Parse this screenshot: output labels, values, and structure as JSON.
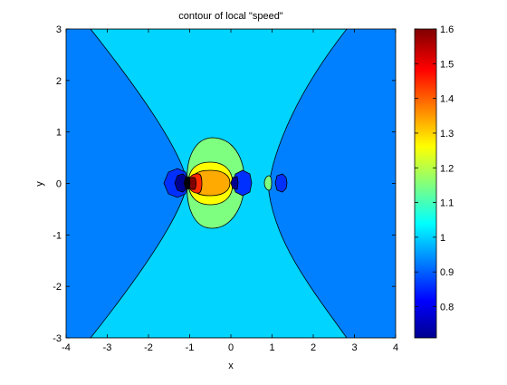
{
  "chart_data": {
    "type": "contour",
    "title": "contour of local \"speed\"",
    "xlabel": "x",
    "ylabel": "y",
    "xlim": [
      -4,
      4
    ],
    "ylim": [
      -3,
      3
    ],
    "x_ticks": [
      -4,
      -3,
      -2,
      -1,
      0,
      1,
      2,
      3,
      4
    ],
    "y_ticks": [
      3,
      2,
      1,
      0,
      -1,
      -2,
      -3
    ],
    "grid": false,
    "colormap": "jet",
    "colorbar": {
      "range": [
        0.71,
        1.6
      ],
      "ticks": [
        1.6,
        1.5,
        1.4,
        1.3,
        1.2,
        1.1,
        1,
        0.9,
        0.8
      ],
      "tick_labels": [
        "1.6",
        "1.5",
        "1.4",
        "1.3",
        "1.2",
        "1.1",
        "1",
        "0.9",
        "0.8"
      ]
    },
    "regions": [
      {
        "value": 0.95,
        "color": "#0080ff",
        "description": "outer left and right zones"
      },
      {
        "value": 1.0,
        "color": "#00d4ff",
        "description": "hourglass central band"
      },
      {
        "value": 1.15,
        "color": "#7fff7f",
        "description": "core around source"
      },
      {
        "value": 1.25,
        "color": "#ffff00"
      },
      {
        "value": 1.35,
        "color": "#ffaa00"
      },
      {
        "value": 1.5,
        "color": "#ff2a00"
      },
      {
        "value": 1.6,
        "color": "#800000"
      },
      {
        "value": 0.85,
        "color": "#0030ff"
      },
      {
        "value": 0.75,
        "color": "#000090"
      }
    ]
  }
}
